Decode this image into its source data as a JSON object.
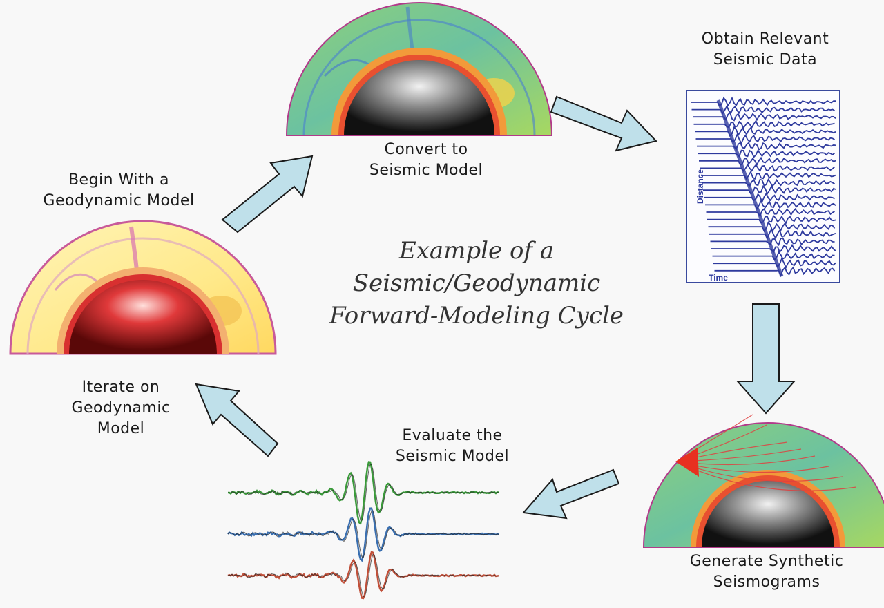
{
  "title": {
    "line1": "Example of a",
    "line2": "Seismic/Geodynamic",
    "line3": "Forward-Modeling Cycle"
  },
  "steps": {
    "begin": {
      "line1": "Begin With a",
      "line2": "Geodynamic Model"
    },
    "convert": {
      "line1": "Convert to",
      "line2": "Seismic Model"
    },
    "obtain": {
      "line1": "Obtain Relevant",
      "line2": "Seismic Data"
    },
    "generate": {
      "line1": "Generate Synthetic",
      "line2": "Seismograms"
    },
    "evaluate": {
      "line1": "Evaluate the",
      "line2": "Seismic Model"
    },
    "iterate": {
      "line1": "Iterate on",
      "line2": "Geodynamic",
      "line3": "Model"
    }
  },
  "seismic_data_plot": {
    "ylabel": "Distance",
    "xlabel": "Time"
  },
  "colors": {
    "arrow_fill": "#bfe0ea",
    "arrow_stroke": "#1a1a1a",
    "trace_blue": "#2e3a9e",
    "green_trace": "#3a9a3a",
    "blue_trace": "#3a6fb0",
    "red_trace": "#c0503a"
  }
}
